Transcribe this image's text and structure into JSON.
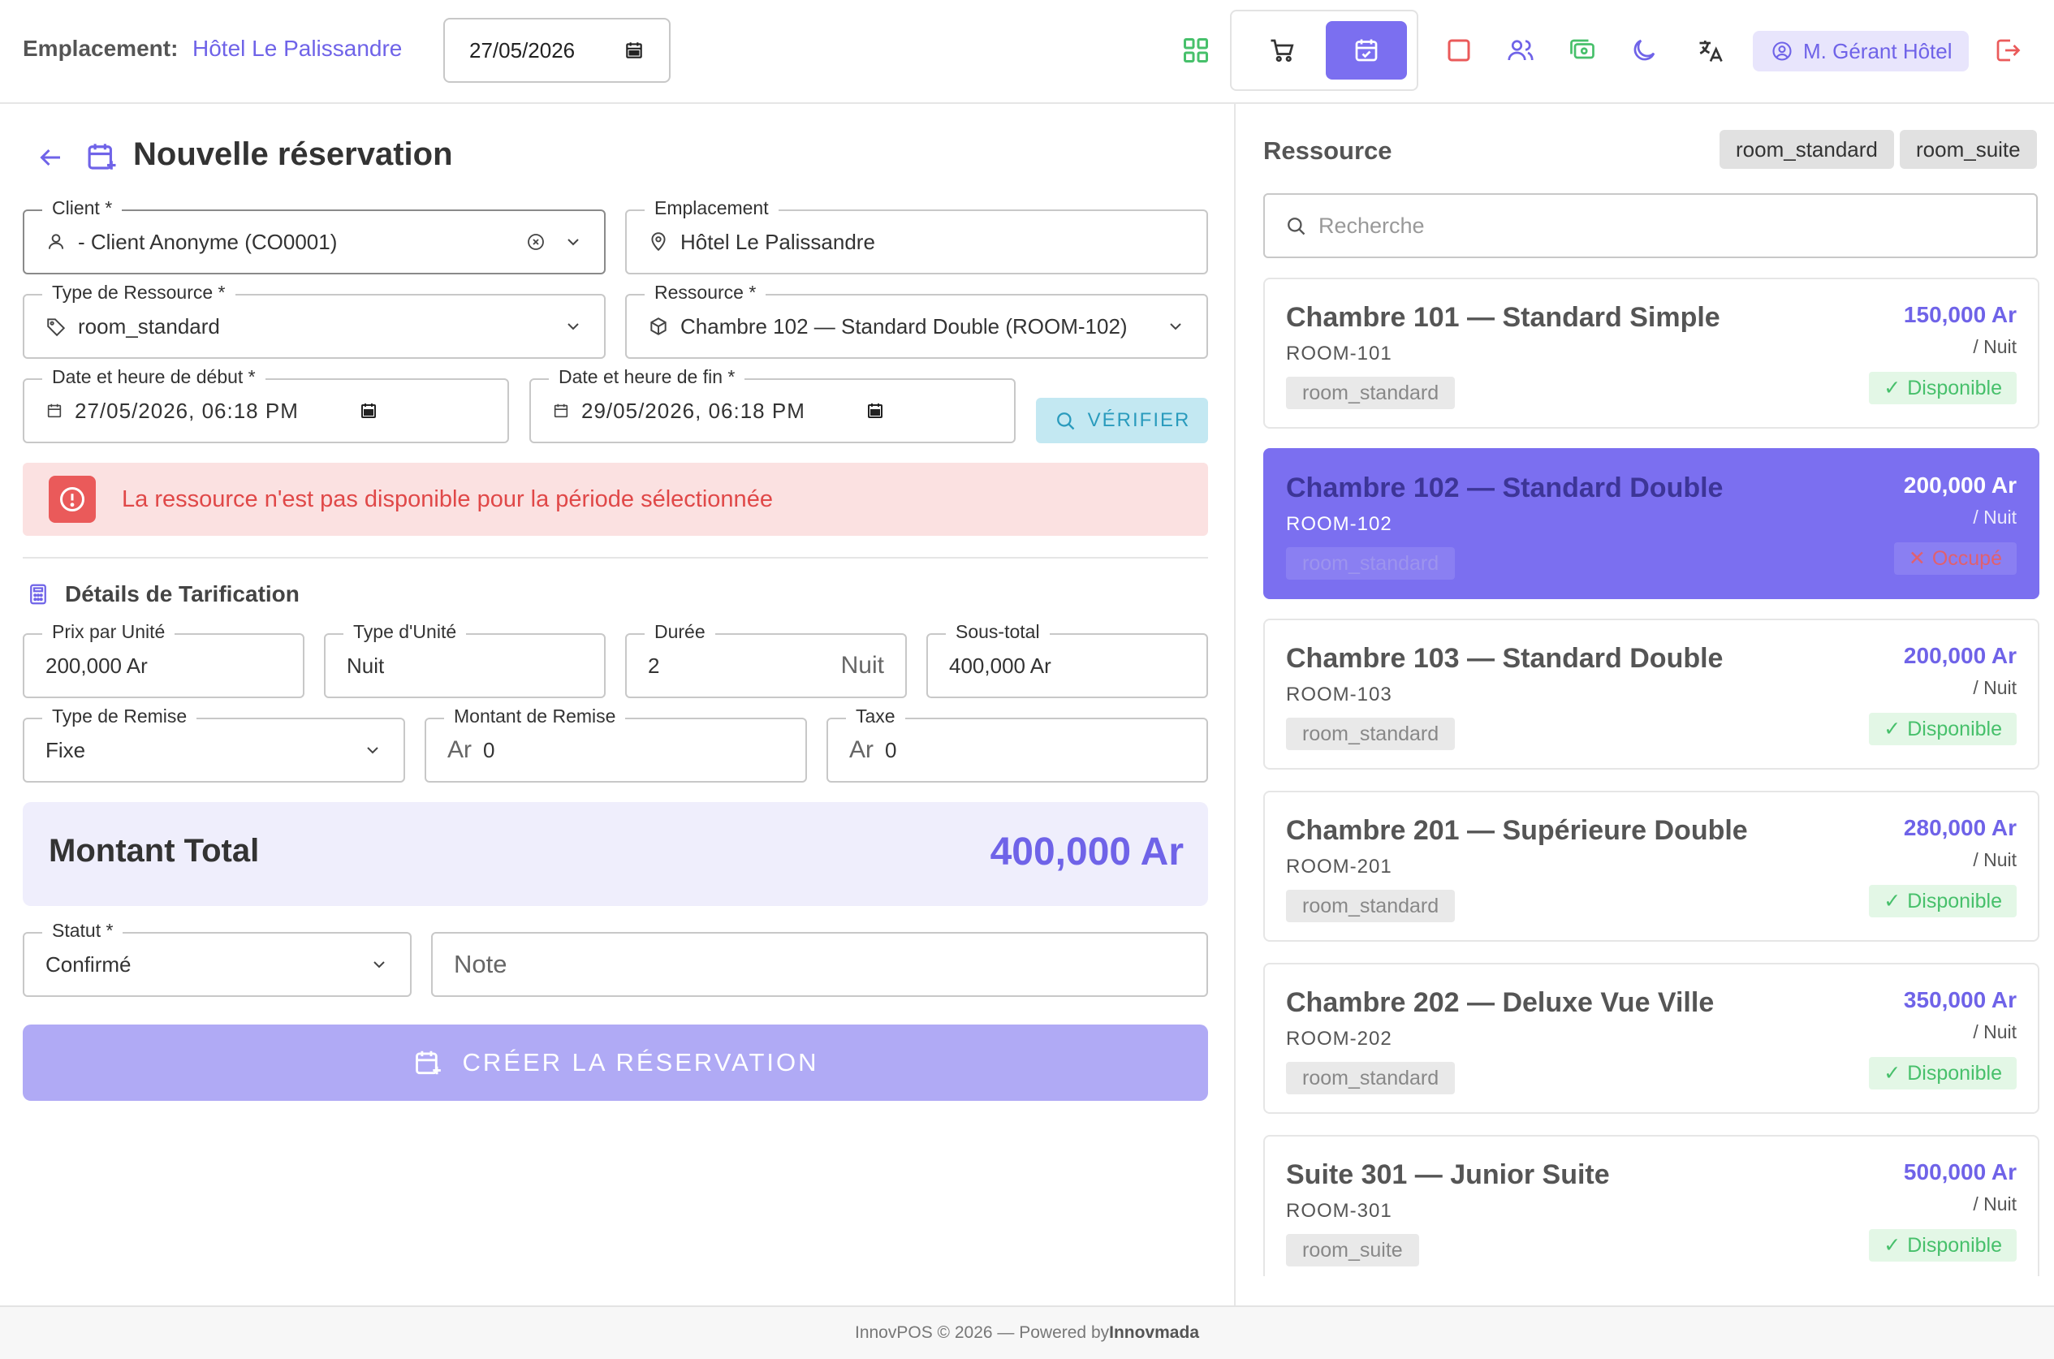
{
  "header": {
    "location_label": "Emplacement:",
    "location_value": "Hôtel Le Palissandre",
    "date": "27/05/2026",
    "user": "M. Gérant Hôtel",
    "colors": {
      "accent": "#7b6ff0",
      "green": "#47c06b",
      "red": "#ea5a5a"
    }
  },
  "page": {
    "title": "Nouvelle réservation"
  },
  "form": {
    "client": {
      "label": "Client *",
      "value": "- Client Anonyme (CO0001)"
    },
    "emplacement": {
      "label": "Emplacement",
      "value": "Hôtel Le Palissandre"
    },
    "resource_type": {
      "label": "Type de Ressource *",
      "value": "room_standard"
    },
    "resource": {
      "label": "Ressource *",
      "value": "Chambre 102 — Standard Double (ROOM-102)"
    },
    "start": {
      "label": "Date et heure de début *",
      "value": "27/05/2026, 06:18 PM"
    },
    "end": {
      "label": "Date et heure de fin *",
      "value": "29/05/2026, 06:18 PM"
    },
    "verify_label": "VÉRIFIER",
    "alert": "La ressource n'est pas disponible pour la période sélectionnée"
  },
  "pricing": {
    "title": "Détails de Tarification",
    "unit_price": {
      "label": "Prix par Unité",
      "value": "200,000 Ar"
    },
    "unit_type": {
      "label": "Type d'Unité",
      "value": "Nuit"
    },
    "duration": {
      "label": "Durée",
      "value": "2",
      "suffix": "Nuit"
    },
    "subtotal": {
      "label": "Sous-total",
      "value": "400,000 Ar"
    },
    "discount_type": {
      "label": "Type de Remise",
      "value": "Fixe"
    },
    "discount_amount": {
      "label": "Montant de Remise",
      "prefix": "Ar",
      "value": "0"
    },
    "tax": {
      "label": "Taxe",
      "prefix": "Ar",
      "value": "0"
    },
    "total_label": "Montant Total",
    "total_value": "400,000 Ar",
    "status": {
      "label": "Statut *",
      "value": "Confirmé"
    },
    "note_placeholder": "Note",
    "create_label": "CRÉER LA RÉSERVATION"
  },
  "resources": {
    "title": "Ressource",
    "filters": [
      "room_standard",
      "room_suite"
    ],
    "search_placeholder": "Recherche",
    "items": [
      {
        "name": "Chambre 101 — Standard Simple",
        "code": "ROOM-101",
        "type": "room_standard",
        "price": "150,000 Ar",
        "unit": "/ Nuit",
        "status": "Disponible",
        "status_icon": "check-icon"
      },
      {
        "name": "Chambre 102 — Standard Double",
        "code": "ROOM-102",
        "type": "room_standard",
        "price": "200,000 Ar",
        "unit": "/ Nuit",
        "status": "Occupé",
        "status_icon": "x-icon",
        "selected": true
      },
      {
        "name": "Chambre 103 — Standard Double",
        "code": "ROOM-103",
        "type": "room_standard",
        "price": "200,000 Ar",
        "unit": "/ Nuit",
        "status": "Disponible",
        "status_icon": "check-icon"
      },
      {
        "name": "Chambre 201 — Supérieure Double",
        "code": "ROOM-201",
        "type": "room_standard",
        "price": "280,000 Ar",
        "unit": "/ Nuit",
        "status": "Disponible",
        "status_icon": "check-icon"
      },
      {
        "name": "Chambre 202 — Deluxe Vue Ville",
        "code": "ROOM-202",
        "type": "room_standard",
        "price": "350,000 Ar",
        "unit": "/ Nuit",
        "status": "Disponible",
        "status_icon": "check-icon"
      },
      {
        "name": "Suite 301 — Junior Suite",
        "code": "ROOM-301",
        "type": "room_suite",
        "price": "500,000 Ar",
        "unit": "/ Nuit",
        "status": "Disponible",
        "status_icon": "check-icon"
      }
    ]
  },
  "footer": {
    "text": "InnovPOS © 2026 — Powered by",
    "brand": "Innovmada"
  }
}
